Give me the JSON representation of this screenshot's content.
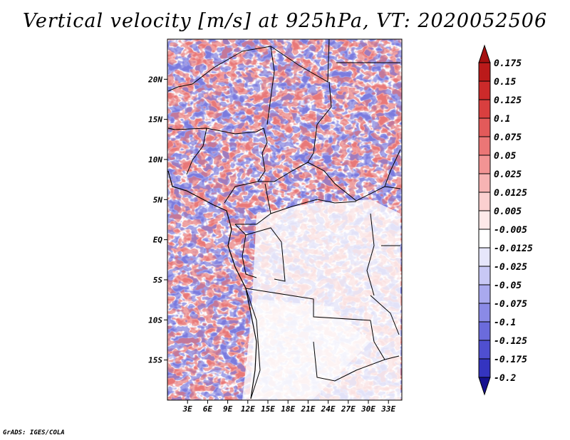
{
  "title": "Vertical velocity [m/s] at 925hPa, VT: 2020052506",
  "credit": "GrADS: IGES/COLA",
  "map": {
    "lon_range": [
      0,
      35
    ],
    "lat_range": [
      -20,
      25
    ],
    "lat_ticks": [
      {
        "value": 20,
        "label": "20N"
      },
      {
        "value": 15,
        "label": "15N"
      },
      {
        "value": 10,
        "label": "10N"
      },
      {
        "value": 5,
        "label": "5N"
      },
      {
        "value": 0,
        "label": "EQ"
      },
      {
        "value": -5,
        "label": "5S"
      },
      {
        "value": -10,
        "label": "10S"
      },
      {
        "value": -15,
        "label": "15S"
      }
    ],
    "lon_ticks": [
      {
        "value": 3,
        "label": "3E"
      },
      {
        "value": 6,
        "label": "6E"
      },
      {
        "value": 9,
        "label": "9E"
      },
      {
        "value": 12,
        "label": "12E"
      },
      {
        "value": 15,
        "label": "15E"
      },
      {
        "value": 18,
        "label": "18E"
      },
      {
        "value": 21,
        "label": "21E"
      },
      {
        "value": 24,
        "label": "24E"
      },
      {
        "value": 27,
        "label": "27E"
      },
      {
        "value": 30,
        "label": "30E"
      },
      {
        "value": 33,
        "label": "33E"
      }
    ]
  },
  "colorbar": {
    "levels": [
      {
        "label": "0.175",
        "color": "#bb1a1a"
      },
      {
        "label": "0.15",
        "color": "#cc2a2a"
      },
      {
        "label": "0.125",
        "color": "#d93f3f"
      },
      {
        "label": "0.1",
        "color": "#e35a5a"
      },
      {
        "label": "0.075",
        "color": "#eb7676"
      },
      {
        "label": "0.05",
        "color": "#f29494"
      },
      {
        "label": "0.025",
        "color": "#f7b3b3"
      },
      {
        "label": "0.0125",
        "color": "#fbd0d0"
      },
      {
        "label": "0.005",
        "color": "#fde9e9"
      },
      {
        "label": "-0.005",
        "color": "#ffffff"
      },
      {
        "label": "-0.0125",
        "color": "#e6e6fb"
      },
      {
        "label": "-0.025",
        "color": "#c8c8f5"
      },
      {
        "label": "-0.05",
        "color": "#a9a9ee"
      },
      {
        "label": "-0.075",
        "color": "#8a8ae6"
      },
      {
        "label": "-0.1",
        "color": "#6b6bdc"
      },
      {
        "label": "-0.125",
        "color": "#4f4fd0"
      },
      {
        "label": "-0.175",
        "color": "#3434c0"
      },
      {
        "label": "-0.2",
        "color": "#1f1fa8"
      }
    ],
    "top_color": "#a51010",
    "bottom_color": "#15108f"
  }
}
